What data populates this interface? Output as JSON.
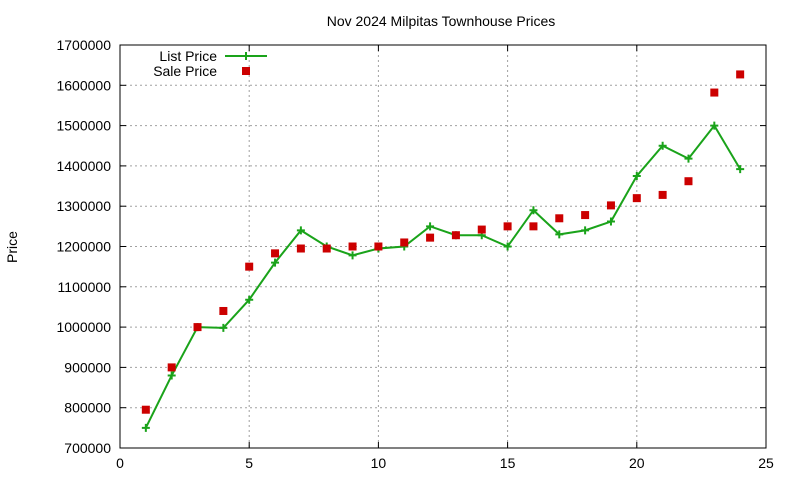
{
  "chart_data": {
    "type": "line",
    "title": "Nov 2024 Milpitas Townhouse Prices",
    "xlabel": "",
    "ylabel": "Price",
    "xlim": [
      0,
      25
    ],
    "ylim": [
      700000,
      1700000
    ],
    "x_ticks": [
      "0",
      "5",
      "10",
      "15",
      "20",
      "25"
    ],
    "y_ticks": [
      "700000",
      "800000",
      "900000",
      "1000000",
      "1100000",
      "1200000",
      "1300000",
      "1400000",
      "1500000",
      "1600000",
      "1700000"
    ],
    "grid": true,
    "legend_position": "top-left",
    "series": [
      {
        "name": "List Price",
        "style": "line-with-plus-markers",
        "color": "#1aa31a",
        "x": [
          1,
          2,
          3,
          4,
          5,
          6,
          7,
          8,
          9,
          10,
          11,
          12,
          13,
          14,
          15,
          16,
          17,
          18,
          19,
          20,
          21,
          22,
          23,
          24
        ],
        "values": [
          750000,
          880000,
          1000000,
          998000,
          1068000,
          1160000,
          1240000,
          1200000,
          1178000,
          1195000,
          1200000,
          1250000,
          1228000,
          1228000,
          1200000,
          1290000,
          1230000,
          1240000,
          1262000,
          1375000,
          1450000,
          1418000,
          1500000,
          1392000
        ]
      },
      {
        "name": "Sale Price",
        "style": "square-markers",
        "color": "#cc0000",
        "x": [
          1,
          2,
          3,
          4,
          5,
          6,
          7,
          8,
          9,
          10,
          11,
          12,
          13,
          14,
          15,
          16,
          17,
          18,
          19,
          20,
          21,
          22,
          23,
          24
        ],
        "values": [
          795000,
          900000,
          1000000,
          1040000,
          1150000,
          1183000,
          1195000,
          1195000,
          1200000,
          1200000,
          1210000,
          1222000,
          1228000,
          1242000,
          1250000,
          1250000,
          1270000,
          1278000,
          1302000,
          1320000,
          1328000,
          1362000,
          1582000,
          1627000
        ]
      }
    ]
  }
}
